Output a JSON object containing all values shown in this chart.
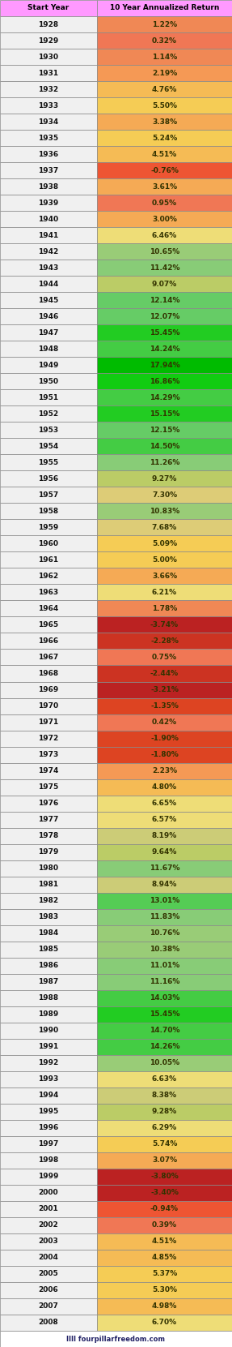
{
  "title": "Start Year",
  "col2_title": "10 Year Annualized Return",
  "header_color": "#FF99FF",
  "footer_text": "IIII fourpillarfreedom.com",
  "col1_bg_even": "#EFEFEF",
  "col1_bg_odd": "#EFEFEF",
  "rows": [
    {
      "year": 1928,
      "value": 1.22
    },
    {
      "year": 1929,
      "value": 0.32
    },
    {
      "year": 1930,
      "value": 1.14
    },
    {
      "year": 1931,
      "value": 2.19
    },
    {
      "year": 1932,
      "value": 4.76
    },
    {
      "year": 1933,
      "value": 5.5
    },
    {
      "year": 1934,
      "value": 3.38
    },
    {
      "year": 1935,
      "value": 5.24
    },
    {
      "year": 1936,
      "value": 4.51
    },
    {
      "year": 1937,
      "value": -0.76
    },
    {
      "year": 1938,
      "value": 3.61
    },
    {
      "year": 1939,
      "value": 0.95
    },
    {
      "year": 1940,
      "value": 3.0
    },
    {
      "year": 1941,
      "value": 6.46
    },
    {
      "year": 1942,
      "value": 10.65
    },
    {
      "year": 1943,
      "value": 11.42
    },
    {
      "year": 1944,
      "value": 9.07
    },
    {
      "year": 1945,
      "value": 12.14
    },
    {
      "year": 1946,
      "value": 12.07
    },
    {
      "year": 1947,
      "value": 15.45
    },
    {
      "year": 1948,
      "value": 14.24
    },
    {
      "year": 1949,
      "value": 17.94
    },
    {
      "year": 1950,
      "value": 16.86
    },
    {
      "year": 1951,
      "value": 14.29
    },
    {
      "year": 1952,
      "value": 15.15
    },
    {
      "year": 1953,
      "value": 12.15
    },
    {
      "year": 1954,
      "value": 14.5
    },
    {
      "year": 1955,
      "value": 11.26
    },
    {
      "year": 1956,
      "value": 9.27
    },
    {
      "year": 1957,
      "value": 7.3
    },
    {
      "year": 1958,
      "value": 10.83
    },
    {
      "year": 1959,
      "value": 7.68
    },
    {
      "year": 1960,
      "value": 5.09
    },
    {
      "year": 1961,
      "value": 5.0
    },
    {
      "year": 1962,
      "value": 3.66
    },
    {
      "year": 1963,
      "value": 6.21
    },
    {
      "year": 1964,
      "value": 1.78
    },
    {
      "year": 1965,
      "value": -3.74
    },
    {
      "year": 1966,
      "value": -2.28
    },
    {
      "year": 1967,
      "value": 0.75
    },
    {
      "year": 1968,
      "value": -2.44
    },
    {
      "year": 1969,
      "value": -3.21
    },
    {
      "year": 1970,
      "value": -1.35
    },
    {
      "year": 1971,
      "value": 0.42
    },
    {
      "year": 1972,
      "value": -1.9
    },
    {
      "year": 1973,
      "value": -1.8
    },
    {
      "year": 1974,
      "value": 2.23
    },
    {
      "year": 1975,
      "value": 4.8
    },
    {
      "year": 1976,
      "value": 6.65
    },
    {
      "year": 1977,
      "value": 6.57
    },
    {
      "year": 1978,
      "value": 8.19
    },
    {
      "year": 1979,
      "value": 9.64
    },
    {
      "year": 1980,
      "value": 11.67
    },
    {
      "year": 1981,
      "value": 8.94
    },
    {
      "year": 1982,
      "value": 13.01
    },
    {
      "year": 1983,
      "value": 11.83
    },
    {
      "year": 1984,
      "value": 10.76
    },
    {
      "year": 1985,
      "value": 10.38
    },
    {
      "year": 1986,
      "value": 11.01
    },
    {
      "year": 1987,
      "value": 11.16
    },
    {
      "year": 1988,
      "value": 14.03
    },
    {
      "year": 1989,
      "value": 15.45
    },
    {
      "year": 1990,
      "value": 14.7
    },
    {
      "year": 1991,
      "value": 14.26
    },
    {
      "year": 1992,
      "value": 10.05
    },
    {
      "year": 1993,
      "value": 6.63
    },
    {
      "year": 1994,
      "value": 8.38
    },
    {
      "year": 1995,
      "value": 9.28
    },
    {
      "year": 1996,
      "value": 6.29
    },
    {
      "year": 1997,
      "value": 5.74
    },
    {
      "year": 1998,
      "value": 3.07
    },
    {
      "year": 1999,
      "value": -3.8
    },
    {
      "year": 2000,
      "value": -3.4
    },
    {
      "year": 2001,
      "value": -0.94
    },
    {
      "year": 2002,
      "value": 0.39
    },
    {
      "year": 2003,
      "value": 4.51
    },
    {
      "year": 2004,
      "value": 4.85
    },
    {
      "year": 2005,
      "value": 5.37
    },
    {
      "year": 2006,
      "value": 5.3
    },
    {
      "year": 2007,
      "value": 4.98
    },
    {
      "year": 2008,
      "value": 6.7
    }
  ]
}
